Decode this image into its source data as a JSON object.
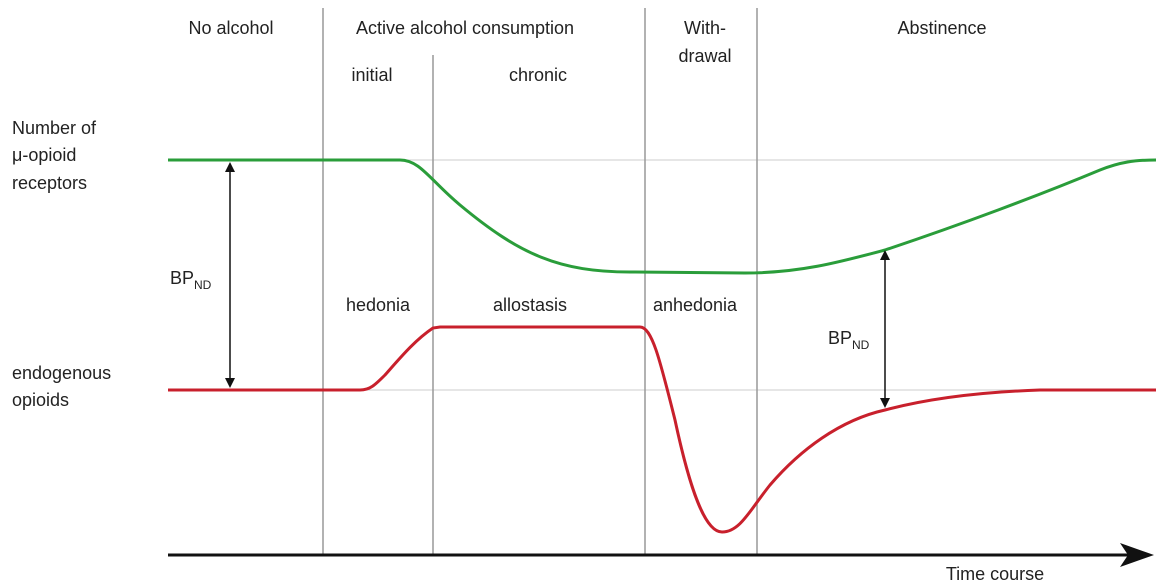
{
  "phases": [
    {
      "label": "No alcohol"
    },
    {
      "label": "Active alcohol consumption"
    },
    {
      "lines": [
        "With-",
        "drawal"
      ]
    },
    {
      "label": "Abstinence"
    }
  ],
  "subphases": [
    "initial",
    "chronic"
  ],
  "rows": [
    {
      "lines": [
        "Number of",
        "μ-opioid",
        "receptors"
      ]
    },
    {
      "lines": [
        "endogenous",
        "opioids"
      ]
    }
  ],
  "states": [
    "hedonia",
    "allostasis",
    "anhedonia"
  ],
  "annotations": [
    {
      "main": "BP",
      "sub": "ND"
    },
    {
      "main": "BP",
      "sub": "ND"
    }
  ],
  "axis_label": "Time course"
}
